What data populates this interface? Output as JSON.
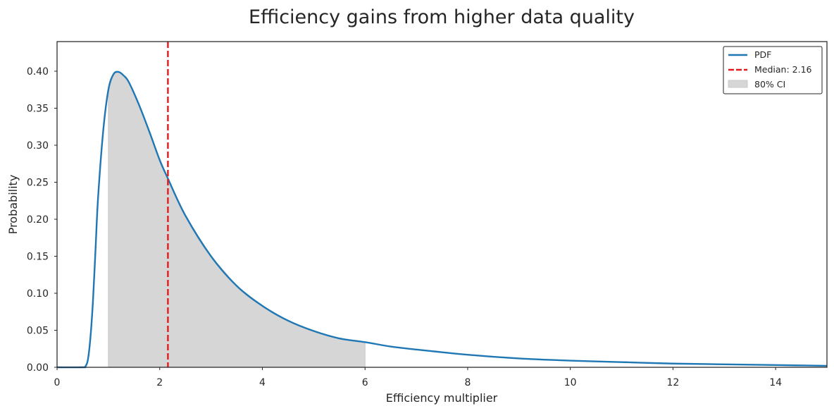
{
  "chart_data": {
    "type": "line",
    "title": "Efficiency gains from higher data quality",
    "xlabel": "Efficiency multiplier",
    "ylabel": "Probability",
    "xlim": [
      0,
      15
    ],
    "ylim": [
      0,
      0.44
    ],
    "xticks": [
      0,
      2,
      4,
      6,
      8,
      10,
      12,
      14
    ],
    "yticks": [
      0.0,
      0.05,
      0.1,
      0.15,
      0.2,
      0.25,
      0.3,
      0.35,
      0.4
    ],
    "grid": false,
    "legend_position": "top-right",
    "series": [
      {
        "name": "PDF",
        "style": "solid",
        "color": "#1f77b4",
        "x": [
          0.5,
          0.55,
          0.6,
          0.65,
          0.7,
          0.75,
          0.8,
          0.9,
          1.0,
          1.1,
          1.2,
          1.3,
          1.4,
          1.6,
          1.8,
          2.0,
          2.16,
          2.5,
          3.0,
          3.5,
          4.0,
          4.5,
          5.0,
          5.5,
          6.0,
          6.5,
          7.0,
          8.0,
          9.0,
          10.0,
          11.0,
          12.0,
          13.0,
          14.0,
          15.0
        ],
        "y": [
          0.0,
          0.001,
          0.01,
          0.04,
          0.09,
          0.16,
          0.23,
          0.32,
          0.375,
          0.396,
          0.399,
          0.394,
          0.385,
          0.354,
          0.318,
          0.28,
          0.255,
          0.205,
          0.15,
          0.11,
          0.083,
          0.063,
          0.049,
          0.039,
          0.034,
          0.028,
          0.024,
          0.017,
          0.012,
          0.009,
          0.007,
          0.005,
          0.004,
          0.003,
          0.002
        ]
      }
    ],
    "median": {
      "label": "Median: 2.16",
      "value": 2.16,
      "color": "#e41a1c"
    },
    "ci": {
      "label": "80% CI",
      "lower": 1.0,
      "upper": 6.0,
      "color": "#d6d6d6"
    }
  }
}
